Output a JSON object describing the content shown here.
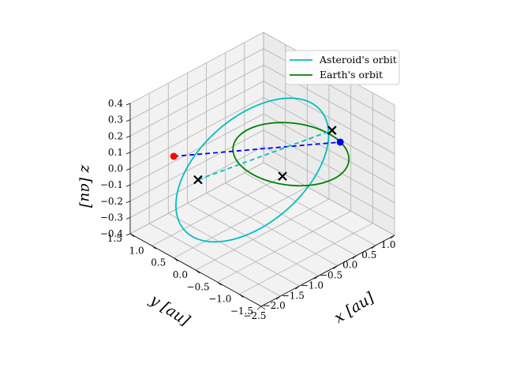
{
  "chart_data": {
    "type": "line",
    "projection": "3d",
    "grid": true,
    "legend_placement": "top-right",
    "xlabel": "x [au]",
    "ylabel": "y [au]",
    "zlabel": "z [au]",
    "xlim": [
      -2.5,
      1.0
    ],
    "ylim": [
      -1.5,
      1.5
    ],
    "zlim": [
      -0.4,
      0.4
    ],
    "x_ticks": [
      "−2.5",
      "−2.0",
      "−1.5",
      "−1.0",
      "−0.5",
      "0.0",
      "0.5",
      "1.0"
    ],
    "y_ticks": [
      "1.5",
      "1.0",
      "0.5",
      "0.0",
      "−0.5",
      "−1.0",
      "−1.5"
    ],
    "z_ticks": [
      "0.4",
      "0.3",
      "0.2",
      "0.1",
      "0.0",
      "−0.1",
      "−0.2",
      "−0.3",
      "−0.4"
    ],
    "x_tick_values": [
      -2.5,
      -2.0,
      -1.5,
      -1.0,
      -0.5,
      0.0,
      0.5,
      1.0
    ],
    "y_tick_values": [
      1.5,
      1.0,
      0.5,
      0.0,
      -0.5,
      -1.0,
      -1.5
    ],
    "z_tick_values": [
      0.4,
      0.3,
      0.2,
      0.1,
      0.0,
      -0.1,
      -0.2,
      -0.3,
      -0.4
    ],
    "series": [
      {
        "name": "Asteroid's orbit",
        "color": "#00bfbf",
        "center": [
          -0.9,
          0.1,
          0.0
        ],
        "a": [
          1.7,
          0.15,
          0.18
        ],
        "b": [
          0.25,
          1.35,
          -0.08
        ]
      },
      {
        "name": "Earth's orbit",
        "color": "#008000",
        "center": [
          0.0,
          0.0,
          0.0
        ],
        "a": [
          1.0,
          0.0,
          0.0
        ],
        "b": [
          0.0,
          1.0,
          0.0
        ]
      }
    ],
    "points": [
      {
        "label": "asteroid",
        "color": "#ff0000",
        "xyz": [
          -1.7,
          1.2,
          0.02
        ]
      },
      {
        "label": "earth",
        "color": "#0000ff",
        "xyz": [
          0.95,
          -0.3,
          0.0
        ]
      }
    ],
    "crosses": [
      {
        "color": "#000000",
        "xyz": [
          -1.35,
          0.95,
          -0.13
        ]
      },
      {
        "color": "#000000",
        "xyz": [
          -0.45,
          -0.2,
          -0.05
        ]
      },
      {
        "color": "#000000",
        "xyz": [
          0.85,
          -0.2,
          0.07
        ]
      }
    ],
    "dashed_lines": [
      {
        "color": "#0000ff",
        "from": [
          -1.7,
          1.2,
          0.02
        ],
        "to": [
          0.95,
          -0.3,
          0.0
        ]
      },
      {
        "color": "#00bfbf",
        "from": [
          -1.35,
          0.95,
          -0.13
        ],
        "to": [
          0.85,
          -0.2,
          0.07
        ]
      }
    ]
  }
}
